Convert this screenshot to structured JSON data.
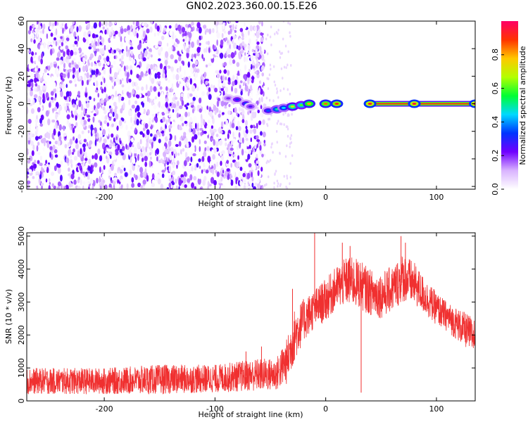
{
  "title": "GN02.2023.360.00.15.E26",
  "chart_data": [
    {
      "type": "heatmap",
      "title": "GN02.2023.360.00.15.E26",
      "xlabel": "Height of straight line (km)",
      "ylabel": "Frequency (Hz)",
      "xlim": [
        -270,
        135
      ],
      "ylim": [
        -62,
        60
      ],
      "xticks": [
        "-200",
        "-100",
        "0",
        "100"
      ],
      "xtick_values": [
        -200,
        -100,
        0,
        100
      ],
      "yticks": [
        "60",
        "40",
        "20",
        "0",
        "-20",
        "-40",
        "-60"
      ],
      "ytick_values": [
        60,
        40,
        20,
        0,
        -20,
        -40,
        -60
      ],
      "colorbar": {
        "label": "Normalized spectral amplitude",
        "range": [
          0,
          1
        ],
        "ticks": [
          "0.0",
          "0.2",
          "0.4",
          "0.6",
          "0.8"
        ],
        "tick_values": [
          0.0,
          0.2,
          0.4,
          0.6,
          0.8
        ],
        "colors": [
          "#ffffff",
          "#d9b3ff",
          "#7000ff",
          "#0033ff",
          "#00d9ff",
          "#00ff33",
          "#b3ff00",
          "#ffc800",
          "#ff3300",
          "#ff0066"
        ]
      },
      "noise_region_x": [
        -270,
        -55
      ],
      "signal_track": [
        {
          "x": -88,
          "y": 4,
          "amplitude": 0.2
        },
        {
          "x": -80,
          "y": 3,
          "amplitude": 0.3
        },
        {
          "x": -72,
          "y": 0,
          "amplitude": 0.35
        },
        {
          "x": -68,
          "y": -2,
          "amplitude": 0.25
        },
        {
          "x": -52,
          "y": -5,
          "amplitude": 0.35
        },
        {
          "x": -44,
          "y": -4,
          "amplitude": 0.5
        },
        {
          "x": -38,
          "y": -3,
          "amplitude": 0.45
        },
        {
          "x": -30,
          "y": -2,
          "amplitude": 0.7
        },
        {
          "x": -22,
          "y": -1,
          "amplitude": 0.6
        },
        {
          "x": -15,
          "y": 0,
          "amplitude": 0.8
        },
        {
          "x": 0,
          "y": 0,
          "amplitude": 0.85
        },
        {
          "x": 10,
          "y": 0,
          "amplitude": 0.9
        },
        {
          "x": 40,
          "y": 0,
          "amplitude": 0.95
        },
        {
          "x": 80,
          "y": 0,
          "amplitude": 0.95
        },
        {
          "x": 135,
          "y": 0,
          "amplitude": 0.95
        }
      ]
    },
    {
      "type": "line",
      "xlabel": "Height of straight line (km)",
      "ylabel": "SNR (10 * v/v)",
      "xlim": [
        -270,
        135
      ],
      "ylim": [
        0,
        5100
      ],
      "xticks": [
        "-200",
        "-100",
        "0",
        "100"
      ],
      "xtick_values": [
        -200,
        -100,
        0,
        100
      ],
      "yticks": [
        "5000",
        "4000",
        "3000",
        "2000",
        "1000",
        "0"
      ],
      "ytick_values": [
        5000,
        4000,
        3000,
        2000,
        1000,
        0
      ],
      "color": "#f03030",
      "envelope": {
        "x": [
          -270,
          -200,
          -150,
          -100,
          -60,
          -45,
          -35,
          -28,
          -20,
          -10,
          0,
          10,
          20,
          30,
          40,
          50,
          60,
          70,
          80,
          90,
          100,
          110,
          120,
          130,
          135
        ],
        "low": [
          200,
          200,
          200,
          250,
          300,
          300,
          500,
          1200,
          1800,
          2200,
          2400,
          2800,
          2900,
          2800,
          2600,
          2500,
          2700,
          3000,
          2900,
          2600,
          2300,
          2100,
          1800,
          1500,
          1400
        ],
        "high": [
          1000,
          1000,
          1100,
          1100,
          1300,
          1300,
          1900,
          2800,
          3100,
          3400,
          3700,
          4100,
          4400,
          4300,
          4000,
          3900,
          4100,
          4500,
          4200,
          3700,
          3300,
          3000,
          2800,
          2600,
          2500
        ]
      },
      "spikes": [
        {
          "x": -72,
          "y": 1500
        },
        {
          "x": -58,
          "y": 1650
        },
        {
          "x": -30,
          "y": 3400
        },
        {
          "x": -10,
          "y": 5100
        },
        {
          "x": 15,
          "y": 4800
        },
        {
          "x": 22,
          "y": 4700
        },
        {
          "x": 68,
          "y": 5000
        },
        {
          "x": 72,
          "y": 4800
        },
        {
          "x": 32,
          "y": 250
        }
      ]
    }
  ]
}
